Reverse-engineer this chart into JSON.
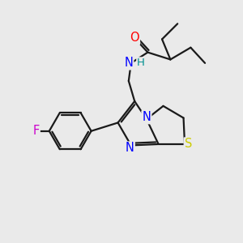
{
  "bg_color": "#eaeaea",
  "bond_color": "#1a1a1a",
  "atom_colors": {
    "O": "#ff0000",
    "N": "#0000ff",
    "S": "#cccc00",
    "F": "#cc00cc",
    "H": "#009090",
    "C": "#1a1a1a"
  },
  "bond_width": 1.6,
  "font_size": 10.5
}
